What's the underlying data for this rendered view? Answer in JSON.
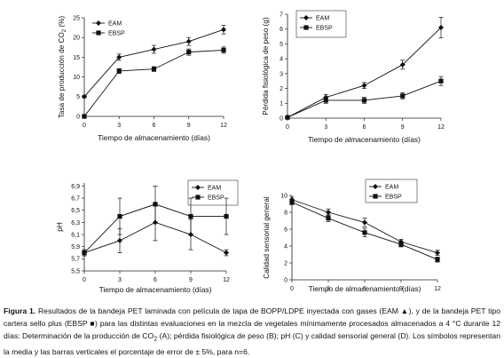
{
  "chart_data": [
    {
      "type": "line",
      "panel": "A",
      "xlabel": "Tiempo de almacenamiento (días)",
      "ylabel": "Tasa de producción de CO₂ (%)",
      "x": [
        0,
        3,
        6,
        9,
        12
      ],
      "xticks": [
        "0",
        "3",
        "6",
        "9",
        "12"
      ],
      "yticks": [
        "0",
        "5",
        "10",
        "15",
        "20",
        "25"
      ],
      "ylim": [
        0,
        25
      ],
      "legend_position": "top-left",
      "series": [
        {
          "name": "EAM",
          "marker": "diamond",
          "values": [
            5,
            15,
            17,
            19,
            22
          ],
          "errors": [
            0.3,
            0.8,
            1.0,
            1.0,
            1.1
          ]
        },
        {
          "name": "EBSP",
          "marker": "square",
          "values": [
            0,
            11.5,
            12,
            16.3,
            16.8
          ],
          "errors": [
            0.2,
            0.6,
            0.6,
            0.8,
            0.8
          ]
        }
      ]
    },
    {
      "type": "line",
      "panel": "B",
      "xlabel": "Tiempo de almacenamiento (días)",
      "ylabel": "Pérdida fisiológica de peso (g)",
      "x": [
        0,
        3,
        6,
        9,
        12
      ],
      "xticks": [
        "0",
        "3",
        "6",
        "9",
        "12"
      ],
      "yticks": [
        "0",
        "1",
        "2",
        "3",
        "4",
        "5",
        "6",
        "7"
      ],
      "ylim": [
        0,
        7
      ],
      "legend_position": "top-left",
      "series": [
        {
          "name": "EAM",
          "marker": "diamond",
          "values": [
            0.05,
            1.4,
            2.2,
            3.6,
            6.1
          ],
          "errors": [
            0.05,
            0.2,
            0.2,
            0.3,
            0.7
          ]
        },
        {
          "name": "EBSP",
          "marker": "square",
          "values": [
            0.05,
            1.2,
            1.2,
            1.5,
            2.5
          ],
          "errors": [
            0.05,
            0.2,
            0.2,
            0.2,
            0.3
          ]
        }
      ]
    },
    {
      "type": "line",
      "panel": "C",
      "xlabel": "Tiempo de almacenamiento (días)",
      "ylabel": "pH",
      "x": [
        0,
        3,
        6,
        9,
        12
      ],
      "xticks": [
        "0",
        "3",
        "6",
        "9",
        "12"
      ],
      "yticks": [
        "5,5",
        "5,7",
        "5,9",
        "6,1",
        "6,3",
        "6,5",
        "6,7",
        "6,9"
      ],
      "ylim": [
        5.5,
        6.95
      ],
      "legend_position": "top-right",
      "series": [
        {
          "name": "EAM",
          "marker": "diamond",
          "values": [
            5.8,
            6.0,
            6.3,
            6.1,
            5.8
          ],
          "errors": [
            0.05,
            0.2,
            0.3,
            0.25,
            0.05
          ]
        },
        {
          "name": "EBSP",
          "marker": "square",
          "values": [
            5.8,
            6.4,
            6.6,
            6.4,
            6.4
          ],
          "errors": [
            0.05,
            0.3,
            0.3,
            0.3,
            0.3
          ]
        }
      ]
    },
    {
      "type": "line",
      "panel": "D",
      "xlabel": "Tiempo de almacenamiento (días)",
      "ylabel": "Calidad sensorial general",
      "x": [
        0,
        3,
        6,
        9,
        12
      ],
      "xticks": [
        "0",
        "3",
        "6",
        "9",
        "12"
      ],
      "yticks": [
        "0",
        "2",
        "4",
        "6",
        "8",
        "10"
      ],
      "ylim": [
        0,
        10
      ],
      "legend_position": "top-right",
      "series": [
        {
          "name": "EAM",
          "marker": "diamond",
          "values": [
            9.5,
            8.0,
            6.8,
            4.5,
            3.2
          ],
          "errors": [
            0.3,
            0.4,
            0.5,
            0.3,
            0.3
          ]
        },
        {
          "name": "EBSP",
          "marker": "square",
          "values": [
            9.2,
            7.3,
            5.6,
            4.2,
            2.4
          ],
          "errors": [
            0.3,
            0.4,
            0.5,
            0.3,
            0.3
          ]
        }
      ]
    }
  ],
  "caption": {
    "lead": "Figura 1.",
    "text_1": " Resultados de la bandeja PET laminada con película de tapa de BOPP/LDPE inyectada con gases (EAM ▲), y de la bandeja PET tipo cartera sello plus  (EBSP ■) para las distintas evaluaciones en la mezcla de vegetales mínimamente procesados almacenados a 4 °C durante 12 días: Determinación de la producción de CO",
    "sub": "2",
    "text_2": " (A); pérdida fisiológica de peso (B); pH (C) y calidad sensorial general (D). Los símbolos  representan la media y las barras verticales el porcentaje de error de ± 5%, para n=6."
  }
}
